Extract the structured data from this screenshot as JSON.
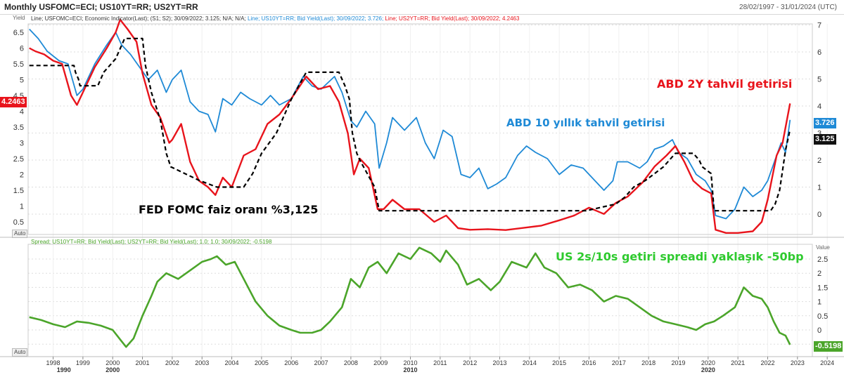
{
  "header": {
    "title": "Monthly USFOMC=ECI; US10YT=RR; US2YT=RR",
    "date_range": "28/02/1997 - 31/01/2024 (UTC)"
  },
  "top_panel": {
    "axis_label": "Yield",
    "auto_label": "Auto",
    "legend": {
      "fomc": "Line; USFOMC=ECI; Economic Indicator(Last); (S1; S2); 30/09/2022; 3.125; N/A; N/A;",
      "us10": "Line; US10YT=RR; Bid Yield(Last); 30/09/2022; 3.726;",
      "us2": "Line; US2YT=RR; Bid Yield(Last); 30/09/2022; 4.2463"
    },
    "annotations": {
      "us2": "ABD 2Y tahvil getirisi",
      "us10": "ABD 10 yıllık tahvil getirisi",
      "fomc": "FED FOMC faiz oranı %3,125"
    },
    "tags": {
      "us2": "4.2463",
      "us10": "3.726",
      "fomc": "3.125"
    }
  },
  "bottom_panel": {
    "legend": "Spread; US10YT=RR; Bid Yield(Last); US2YT=RR; Bid Yield(Last); 1.0; 1.0; 30/09/2022; -0.5198",
    "value_label": "Value",
    "auto_label": "Auto",
    "annotation": "US 2s/10s getiri spreadi yaklaşık -50bp",
    "tag": "-0.5198"
  },
  "colors": {
    "fomc": "#000000",
    "us10": "#1f8ad6",
    "us2": "#e8141c",
    "spread": "#4ba52a",
    "grid": "#dddddd"
  },
  "chart_data": [
    {
      "type": "line",
      "title": "Monthly USFOMC=ECI; US10YT=RR; US2YT=RR",
      "ylabel": "Yield",
      "left_axis": {
        "ticks": [
          0.5,
          1,
          1.5,
          2,
          2.5,
          3,
          3.5,
          4,
          4.5,
          5,
          5.5,
          6,
          6.5
        ],
        "series": [
          "US2YT=RR",
          "US10YT=RR"
        ]
      },
      "right_axis": {
        "ticks": [
          0,
          1,
          2,
          3,
          4,
          5,
          6,
          7
        ],
        "series": [
          "USFOMC=ECI"
        ]
      },
      "xlim": [
        1997.16,
        2023.5
      ],
      "series": [
        {
          "name": "USFOMC=ECI",
          "axis": "right",
          "style": "dashed",
          "x": [
            1997.2,
            1998.7,
            1998.75,
            1998.85,
            1998.9,
            1999.5,
            1999.7,
            1999.9,
            2000.1,
            2000.4,
            2001.0,
            2001.1,
            2001.3,
            2001.6,
            2001.8,
            2001.95,
            2002.9,
            2003.5,
            2004.4,
            2004.7,
            2005.0,
            2005.5,
            2006.0,
            2006.5,
            2007.6,
            2007.8,
            2007.95,
            2008.05,
            2008.2,
            2008.3,
            2008.8,
            2008.95,
            2015.9,
            2016.9,
            2017.2,
            2017.5,
            2017.9,
            2018.2,
            2018.5,
            2018.9,
            2019.5,
            2019.7,
            2019.8,
            2020.1,
            2020.2,
            2022.1,
            2022.25,
            2022.4,
            2022.5,
            2022.6,
            2022.75
          ],
          "values": [
            5.5,
            5.5,
            5.25,
            5.0,
            4.75,
            4.75,
            5.25,
            5.5,
            5.75,
            6.5,
            6.5,
            5.5,
            4.5,
            3.5,
            2.25,
            1.75,
            1.25,
            1.0,
            1.0,
            1.5,
            2.25,
            3.0,
            4.25,
            5.25,
            5.25,
            4.75,
            4.25,
            3.0,
            2.25,
            2.0,
            1.0,
            0.125,
            0.125,
            0.375,
            0.625,
            1.0,
            1.25,
            1.5,
            1.75,
            2.25,
            2.25,
            2.0,
            1.75,
            1.5,
            0.125,
            0.125,
            0.375,
            0.875,
            1.625,
            2.375,
            3.125
          ]
        },
        {
          "name": "US10YT=RR",
          "axis": "left",
          "x": [
            1997.2,
            1997.5,
            1997.8,
            1998.2,
            1998.5,
            1998.8,
            1999.0,
            1999.4,
            1999.8,
            2000.1,
            2000.3,
            2000.6,
            2000.9,
            2001.2,
            2001.5,
            2001.8,
            2002.0,
            2002.3,
            2002.6,
            2002.9,
            2003.2,
            2003.45,
            2003.7,
            2004.0,
            2004.3,
            2004.6,
            2005.0,
            2005.3,
            2005.6,
            2006.0,
            2006.4,
            2006.7,
            2007.0,
            2007.45,
            2007.7,
            2008.0,
            2008.2,
            2008.5,
            2008.8,
            2008.95,
            2009.2,
            2009.4,
            2009.8,
            2010.2,
            2010.5,
            2010.8,
            2011.1,
            2011.4,
            2011.7,
            2012.0,
            2012.3,
            2012.6,
            2012.9,
            2013.2,
            2013.6,
            2013.9,
            2014.2,
            2014.6,
            2015.0,
            2015.4,
            2015.8,
            2016.2,
            2016.5,
            2016.8,
            2016.95,
            2017.3,
            2017.7,
            2017.95,
            2018.2,
            2018.5,
            2018.8,
            2019.0,
            2019.3,
            2019.6,
            2019.9,
            2020.1,
            2020.25,
            2020.6,
            2020.9,
            2021.2,
            2021.5,
            2021.8,
            2022.0,
            2022.3,
            2022.45,
            2022.6,
            2022.75
          ],
          "values": [
            6.6,
            6.3,
            5.9,
            5.6,
            5.5,
            4.5,
            4.7,
            5.5,
            6.1,
            6.5,
            6.1,
            5.8,
            5.4,
            5.0,
            5.3,
            4.6,
            5.0,
            5.3,
            4.3,
            4.0,
            3.9,
            3.35,
            4.4,
            4.2,
            4.6,
            4.4,
            4.2,
            4.5,
            4.2,
            4.4,
            5.1,
            4.8,
            4.7,
            5.1,
            4.6,
            3.7,
            3.5,
            4.0,
            3.6,
            2.2,
            3.0,
            3.8,
            3.4,
            3.8,
            3.0,
            2.5,
            3.4,
            3.2,
            2.0,
            1.9,
            2.2,
            1.55,
            1.7,
            1.9,
            2.6,
            2.9,
            2.7,
            2.5,
            2.0,
            2.3,
            2.2,
            1.8,
            1.5,
            1.8,
            2.4,
            2.4,
            2.2,
            2.4,
            2.8,
            2.9,
            3.1,
            2.7,
            2.5,
            2.0,
            1.8,
            1.5,
            0.7,
            0.6,
            0.9,
            1.6,
            1.3,
            1.5,
            1.8,
            2.6,
            3.0,
            2.7,
            3.726
          ]
        },
        {
          "name": "US2YT=RR",
          "axis": "left",
          "x": [
            1997.2,
            1997.4,
            1997.7,
            1998.0,
            1998.3,
            1998.6,
            1998.8,
            1999.0,
            1999.4,
            1999.8,
            2000.1,
            2000.25,
            2000.5,
            2000.8,
            2001.0,
            2001.3,
            2001.6,
            2001.9,
            2002.0,
            2002.3,
            2002.6,
            2002.9,
            2003.2,
            2003.45,
            2003.7,
            2004.0,
            2004.4,
            2004.8,
            2005.2,
            2005.6,
            2006.0,
            2006.5,
            2006.9,
            2007.3,
            2007.6,
            2007.9,
            2008.1,
            2008.3,
            2008.6,
            2008.9,
            2009.1,
            2009.4,
            2009.8,
            2010.3,
            2010.8,
            2011.2,
            2011.6,
            2012.0,
            2012.6,
            2013.2,
            2013.8,
            2014.4,
            2015.0,
            2015.5,
            2016.0,
            2016.5,
            2016.9,
            2017.3,
            2017.8,
            2018.2,
            2018.6,
            2018.9,
            2019.2,
            2019.5,
            2019.8,
            2020.1,
            2020.25,
            2020.6,
            2021.0,
            2021.5,
            2021.8,
            2022.0,
            2022.3,
            2022.5,
            2022.75
          ],
          "values": [
            6.0,
            5.9,
            5.8,
            5.6,
            5.5,
            4.5,
            4.2,
            4.6,
            5.4,
            6.0,
            6.5,
            6.9,
            6.6,
            6.2,
            5.2,
            4.2,
            3.8,
            3.0,
            3.1,
            3.6,
            2.4,
            1.8,
            1.6,
            1.35,
            1.9,
            1.6,
            2.6,
            2.8,
            3.6,
            3.9,
            4.4,
            5.1,
            4.7,
            4.8,
            4.3,
            3.3,
            2.0,
            2.5,
            2.2,
            0.9,
            0.9,
            1.2,
            0.9,
            0.9,
            0.5,
            0.7,
            0.3,
            0.25,
            0.27,
            0.24,
            0.31,
            0.38,
            0.55,
            0.7,
            0.95,
            0.75,
            1.1,
            1.3,
            1.75,
            2.25,
            2.6,
            2.9,
            2.4,
            1.8,
            1.55,
            1.4,
            0.25,
            0.15,
            0.15,
            0.2,
            0.5,
            1.2,
            2.6,
            3.0,
            4.2463
          ]
        }
      ]
    },
    {
      "type": "line",
      "title": "Spread; US10YT=RR; Bid Yield(Last); US2YT=RR; Bid Yield(Last); 1.0; 1.0; 30/09/2022; -0.5198",
      "ylabel": "Value",
      "y_ticks": [
        -0.5,
        0,
        0.5,
        1,
        1.5,
        2,
        2.5
      ],
      "ylim": [
        -0.8,
        2.9
      ],
      "x_ticks": [
        "1998",
        "1999",
        "2000",
        "2001",
        "2002",
        "2003",
        "2004",
        "2005",
        "2006",
        "2007",
        "2008",
        "2009",
        "2010",
        "2011",
        "2012",
        "2013",
        "2014",
        "2015",
        "2016",
        "2017",
        "2018",
        "2019",
        "2020",
        "2021",
        "2022",
        "2023",
        "2024"
      ],
      "x_decade_labels": [
        "1990",
        "2000",
        "2010",
        "2020"
      ],
      "xlim": [
        1997.16,
        2023.5
      ],
      "series": [
        {
          "name": "Spread",
          "x": [
            1997.2,
            1997.6,
            1998.0,
            1998.4,
            1998.8,
            1999.2,
            1999.6,
            2000.0,
            2000.3,
            2000.45,
            2000.7,
            2001.0,
            2001.3,
            2001.5,
            2001.8,
            2002.2,
            2002.6,
            2003.0,
            2003.3,
            2003.5,
            2003.8,
            2004.1,
            2004.4,
            2004.8,
            2005.2,
            2005.6,
            2006.0,
            2006.3,
            2006.7,
            2007.0,
            2007.3,
            2007.7,
            2008.0,
            2008.3,
            2008.6,
            2008.9,
            2009.2,
            2009.6,
            2010.0,
            2010.3,
            2010.7,
            2011.0,
            2011.2,
            2011.6,
            2011.9,
            2012.3,
            2012.7,
            2013.0,
            2013.4,
            2013.9,
            2014.2,
            2014.5,
            2014.9,
            2015.3,
            2015.7,
            2016.1,
            2016.5,
            2016.9,
            2017.3,
            2017.7,
            2018.1,
            2018.5,
            2018.9,
            2019.3,
            2019.6,
            2019.9,
            2020.2,
            2020.5,
            2020.9,
            2021.2,
            2021.5,
            2021.8,
            2022.0,
            2022.2,
            2022.4,
            2022.6,
            2022.75
          ],
          "values": [
            0.45,
            0.35,
            0.2,
            0.1,
            0.3,
            0.25,
            0.15,
            0.0,
            -0.4,
            -0.6,
            -0.3,
            0.5,
            1.2,
            1.7,
            2.0,
            1.8,
            2.1,
            2.4,
            2.5,
            2.6,
            2.3,
            2.4,
            1.8,
            1.0,
            0.5,
            0.15,
            0.0,
            -0.1,
            -0.1,
            0.0,
            0.3,
            0.8,
            1.8,
            1.5,
            2.2,
            2.4,
            2.0,
            2.7,
            2.5,
            2.9,
            2.7,
            2.4,
            2.8,
            2.3,
            1.6,
            1.8,
            1.4,
            1.7,
            2.4,
            2.2,
            2.7,
            2.2,
            2.0,
            1.5,
            1.6,
            1.4,
            1.0,
            1.2,
            1.1,
            0.8,
            0.5,
            0.3,
            0.2,
            0.1,
            0.0,
            0.2,
            0.3,
            0.5,
            0.8,
            1.5,
            1.2,
            1.1,
            0.8,
            0.3,
            -0.1,
            -0.2,
            -0.5198
          ]
        }
      ]
    }
  ]
}
